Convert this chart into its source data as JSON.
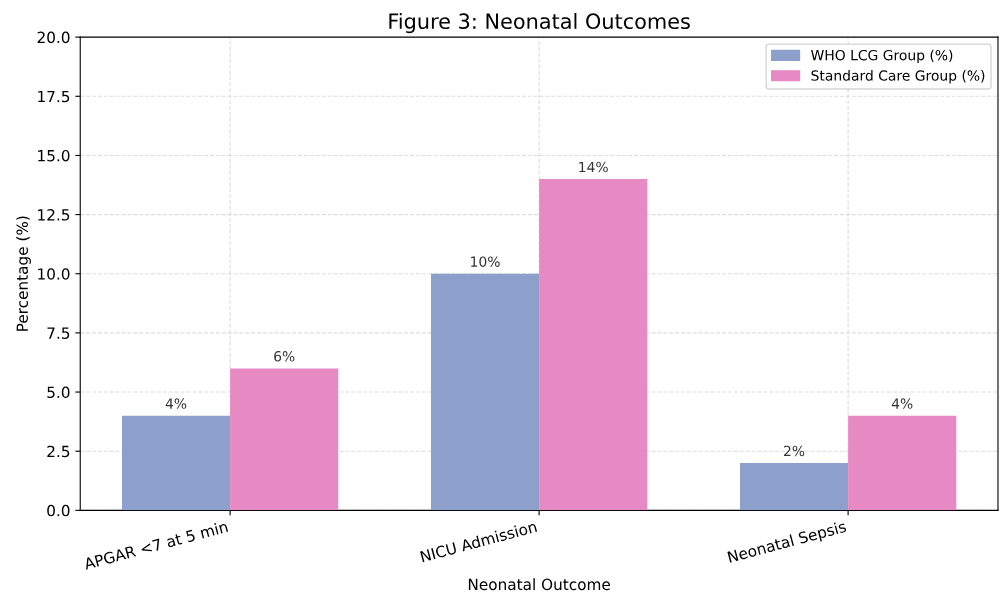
{
  "chart_data": {
    "type": "bar",
    "title": "Figure 3: Neonatal Outcomes",
    "xlabel": "Neonatal Outcome",
    "ylabel": "Percentage (%)",
    "categories": [
      "APGAR <7 at 5 min",
      "NICU Admission",
      "Neonatal Sepsis"
    ],
    "series": [
      {
        "name": "WHO LCG Group (%)",
        "color": "#8da0cb",
        "values": [
          4,
          10,
          2
        ],
        "value_labels": [
          "4%",
          "10%",
          "2%"
        ]
      },
      {
        "name": "Standard Care Group (%)",
        "color": "#e78ac3",
        "values": [
          6,
          14,
          4
        ],
        "value_labels": [
          "6%",
          "14%",
          "4%"
        ]
      }
    ],
    "ylim": [
      0,
      20
    ],
    "yticks": [
      {
        "value": 0,
        "label": "0.0"
      },
      {
        "value": 2.5,
        "label": "2.5"
      },
      {
        "value": 5,
        "label": "5.0"
      },
      {
        "value": 7.5,
        "label": "7.5"
      },
      {
        "value": 10,
        "label": "10.0"
      },
      {
        "value": 12.5,
        "label": "12.5"
      },
      {
        "value": 15,
        "label": "15.0"
      },
      {
        "value": 17.5,
        "label": "17.5"
      },
      {
        "value": 20,
        "label": "20.0"
      }
    ],
    "grid": true,
    "legend": "top right"
  }
}
